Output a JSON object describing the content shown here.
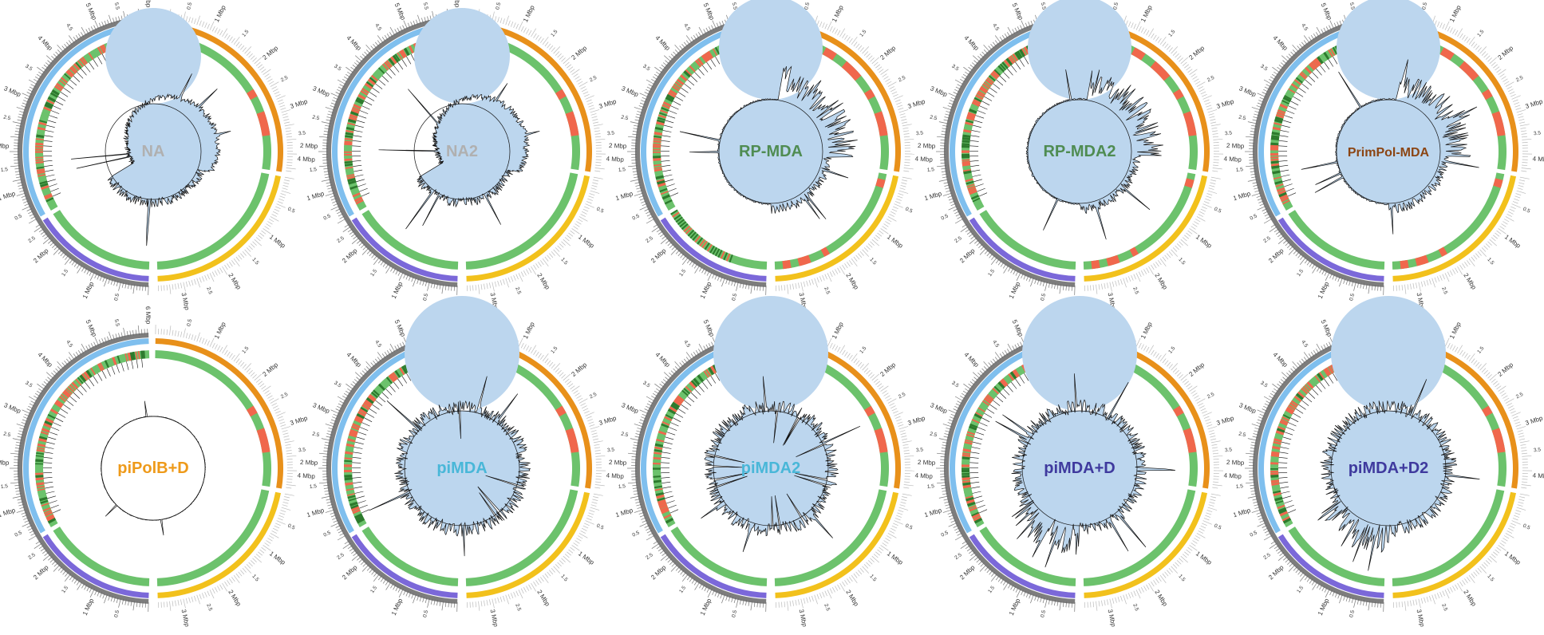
{
  "colors": {
    "ring_left": "#7fbfee",
    "ring_top": "#e8901a",
    "ring_right": "#f2c11c",
    "ring_bottom": "#7b68d9",
    "tick_left": "#777777",
    "tick_right": "#bbbbbb",
    "green": "#6cc26c",
    "red": "#f0674c",
    "coverage_fill": "#bcd6ee",
    "coverage_line": "#111111",
    "na_label": "#b0b0b0",
    "rp_label": "#4f8c52",
    "primpol_label": "#8b4513",
    "pipolb_label": "#ee9a1a",
    "pimda_label": "#49b7d8",
    "pimdad_label": "#3f3a9e"
  },
  "tick_labels": {
    "left": [
      "5 Mbp",
      "4 Mbp",
      "3 Mbp",
      "2 Mbp",
      "1 Mbp",
      "0.5",
      "1.5",
      "2.5",
      "3.5",
      "4.5",
      "5.5"
    ],
    "top": [
      "1 Mbp",
      "2 Mbp",
      "3 Mbp",
      "4 Mbp",
      "0.5",
      "1.5",
      "2.5",
      "3.5"
    ],
    "right": [
      "1 Mbp",
      "2 Mbp",
      "3 Mbp",
      "4 Mbp",
      "0.5",
      "1.5",
      "2.5",
      "3.5"
    ],
    "bottom": [
      "1 Mbp",
      "2 Mbp",
      "0.5",
      "1.5",
      "2.5"
    ],
    "tl_major": "6 Mbp"
  },
  "panels": [
    {
      "label": "NA",
      "color_key": "na_label",
      "profile": "na",
      "amp": 1.0
    },
    {
      "label": "NA2",
      "color_key": "na_label",
      "profile": "na",
      "amp": 0.95
    },
    {
      "label": "RP-MDA",
      "color_key": "rp_label",
      "profile": "rp",
      "amp": 1.0
    },
    {
      "label": "RP-MDA2",
      "color_key": "rp_label",
      "profile": "rp",
      "amp": 0.9
    },
    {
      "label": "PrimPol-MDA",
      "color_key": "primpol_label",
      "profile": "rp",
      "amp": 0.85
    },
    {
      "label": "piPolB+D",
      "color_key": "pipolb_label",
      "profile": "flat",
      "amp": 1.0
    },
    {
      "label": "piMDA",
      "color_key": "pimda_label",
      "profile": "even",
      "amp": 1.0
    },
    {
      "label": "piMDA2",
      "color_key": "pimda_label",
      "profile": "even",
      "amp": 1.0
    },
    {
      "label": "piMDA+D",
      "color_key": "pimdad_label",
      "profile": "even2",
      "amp": 1.0
    },
    {
      "label": "piMDA+D2",
      "color_key": "pimdad_label",
      "profile": "even2",
      "amp": 1.0
    }
  ]
}
